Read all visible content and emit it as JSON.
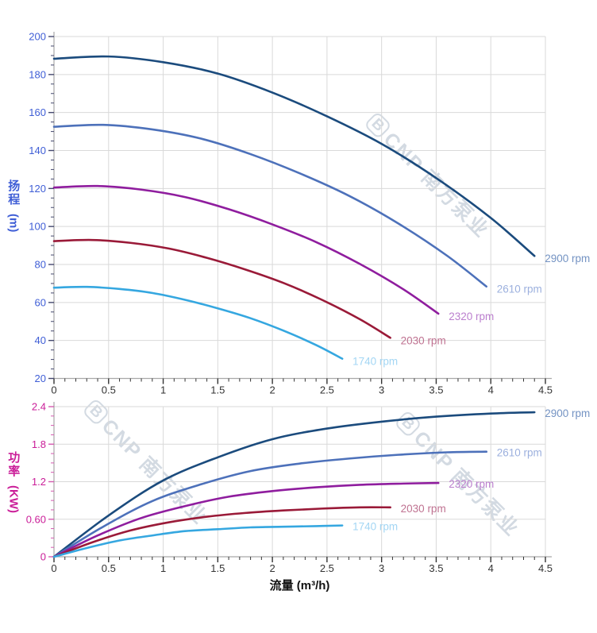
{
  "page": {
    "background": "#ffffff"
  },
  "watermark": {
    "logo_letter": "B",
    "text": "CNP 南方泵业"
  },
  "chart_data": [
    {
      "type": "line",
      "name": "head-curve-chart",
      "title": "",
      "ylabel": "扬程 (m)",
      "ylabel_main": "扬程",
      "ylabel_unit": "(m)",
      "xlabel": "流量 (m³/h)",
      "show_xlabel": false,
      "xlim": [
        0,
        4.5
      ],
      "ylim": [
        20,
        200
      ],
      "grid": true,
      "legend_position": "at-curve-ends-right",
      "x_tick_values": [
        0,
        0.5,
        1,
        1.5,
        2,
        2.5,
        3,
        3.5,
        4,
        4.5
      ],
      "x_tick_labels": [
        "0",
        "0.5",
        "1",
        "1.5",
        "2",
        "2.5",
        "3",
        "3.5",
        "4",
        "4.5"
      ],
      "x_minor_step": 0.1,
      "y_tick_values": [
        20,
        40,
        60,
        80,
        100,
        120,
        140,
        160,
        180,
        200
      ],
      "y_tick_labels": [
        "20",
        "40",
        "60",
        "80",
        "100",
        "120",
        "140",
        "160",
        "180",
        "200"
      ],
      "y_minor_step": 5,
      "axis_color": "#3f5ed6",
      "y_tick_color": "#44486e",
      "x_tick_color": "#333333",
      "grid_color": "#d9d9d9",
      "axis_line_color": "#a8a8a8",
      "series": [
        {
          "name": "2900 rpm",
          "color": "#1b4b7d",
          "label_color": "#7493c3",
          "points": [
            [
              0,
              188.3
            ],
            [
              0.5,
              189.5
            ],
            [
              1,
              186.5
            ],
            [
              1.5,
              180.5
            ],
            [
              2,
              170.5
            ],
            [
              2.5,
              158
            ],
            [
              3,
              143.5
            ],
            [
              3.5,
              125.5
            ],
            [
              4,
              104.5
            ],
            [
              4.4,
              84.5
            ]
          ]
        },
        {
          "name": "2610 rpm",
          "color": "#4d71ba",
          "label_color": "#9cb0de",
          "points": [
            [
              0,
              152.5
            ],
            [
              0.45,
              153.5
            ],
            [
              0.9,
              151.1
            ],
            [
              1.35,
              146.2
            ],
            [
              1.8,
              138.1
            ],
            [
              2.25,
              128
            ],
            [
              2.7,
              116.2
            ],
            [
              3.15,
              101.7
            ],
            [
              3.6,
              84.6
            ],
            [
              3.96,
              68.4
            ]
          ]
        },
        {
          "name": "2320 rpm",
          "color": "#8f1d9e",
          "label_color": "#bb7fce",
          "points": [
            [
              0,
              120.5
            ],
            [
              0.4,
              121.3
            ],
            [
              0.8,
              119.4
            ],
            [
              1.2,
              115.5
            ],
            [
              1.6,
              109.1
            ],
            [
              2,
              101.1
            ],
            [
              2.4,
              91.8
            ],
            [
              2.8,
              80.3
            ],
            [
              3.2,
              66.9
            ],
            [
              3.52,
              54.1
            ]
          ]
        },
        {
          "name": "2030 rpm",
          "color": "#9a1a38",
          "label_color": "#bf7291",
          "points": [
            [
              0,
              92.3
            ],
            [
              0.35,
              92.9
            ],
            [
              0.7,
              91.4
            ],
            [
              1.05,
              88.4
            ],
            [
              1.4,
              83.5
            ],
            [
              1.75,
              77.4
            ],
            [
              2.1,
              70.3
            ],
            [
              2.45,
              61.5
            ],
            [
              2.8,
              51.2
            ],
            [
              3.08,
              41.4
            ]
          ]
        },
        {
          "name": "1740 rpm",
          "color": "#35a7e0",
          "label_color": "#a3d6f4",
          "points": [
            [
              0,
              67.8
            ],
            [
              0.3,
              68.2
            ],
            [
              0.6,
              67.1
            ],
            [
              0.9,
              65
            ],
            [
              1.2,
              61.4
            ],
            [
              1.5,
              56.9
            ],
            [
              1.8,
              51.7
            ],
            [
              2.1,
              45.2
            ],
            [
              2.4,
              37.6
            ],
            [
              2.64,
              30.4
            ]
          ]
        }
      ]
    },
    {
      "type": "line",
      "name": "power-curve-chart",
      "title": "",
      "ylabel": "功率 (KW)",
      "ylabel_main": "功率",
      "ylabel_unit": "(KW)",
      "xlabel": "流量 (m³/h)",
      "show_xlabel": true,
      "xlim": [
        0,
        4.5
      ],
      "ylim": [
        0,
        2.4
      ],
      "grid": true,
      "legend_position": "at-curve-ends-right",
      "x_tick_values": [
        0,
        0.5,
        1,
        1.5,
        2,
        2.5,
        3,
        3.5,
        4,
        4.5
      ],
      "x_tick_labels": [
        "0",
        "0.5",
        "1",
        "1.5",
        "2",
        "2.5",
        "3",
        "3.5",
        "4",
        "4.5"
      ],
      "x_minor_step": 0.1,
      "y_tick_values": [
        0,
        0.6,
        1.2,
        1.8,
        2.4
      ],
      "y_tick_labels": [
        "0",
        "0.60",
        "1.2",
        "1.8",
        "2.4"
      ],
      "y_minor_step": 0.15,
      "axis_color": "#ca1d98",
      "y_tick_color": "#d55ab0",
      "x_tick_color": "#333333",
      "grid_color": "#d9d9d9",
      "axis_line_color": "#a8a8a8",
      "series": [
        {
          "name": "2900 rpm",
          "color": "#1b4b7d",
          "label_color": "#7493c3",
          "points": [
            [
              0,
              0
            ],
            [
              0.5,
              0.66
            ],
            [
              1,
              1.22
            ],
            [
              1.5,
              1.59
            ],
            [
              2,
              1.88
            ],
            [
              2.5,
              2.05
            ],
            [
              3,
              2.16
            ],
            [
              3.5,
              2.24
            ],
            [
              4,
              2.29
            ],
            [
              4.4,
              2.31
            ]
          ]
        },
        {
          "name": "2610 rpm",
          "color": "#4d71ba",
          "label_color": "#9cb0de",
          "points": [
            [
              0,
              0
            ],
            [
              0.45,
              0.48
            ],
            [
              0.9,
              0.89
            ],
            [
              1.35,
              1.16
            ],
            [
              1.8,
              1.37
            ],
            [
              2.25,
              1.49
            ],
            [
              2.7,
              1.57
            ],
            [
              3.15,
              1.63
            ],
            [
              3.6,
              1.67
            ],
            [
              3.96,
              1.68
            ]
          ]
        },
        {
          "name": "2320 rpm",
          "color": "#8f1d9e",
          "label_color": "#bb7fce",
          "points": [
            [
              0,
              0
            ],
            [
              0.4,
              0.34
            ],
            [
              0.8,
              0.62
            ],
            [
              1.2,
              0.81
            ],
            [
              1.6,
              0.96
            ],
            [
              2,
              1.05
            ],
            [
              2.4,
              1.11
            ],
            [
              2.8,
              1.15
            ],
            [
              3.2,
              1.17
            ],
            [
              3.52,
              1.18
            ]
          ]
        },
        {
          "name": "2030 rpm",
          "color": "#9a1a38",
          "label_color": "#bf7291",
          "points": [
            [
              0,
              0
            ],
            [
              0.35,
              0.23
            ],
            [
              0.7,
              0.42
            ],
            [
              1.05,
              0.55
            ],
            [
              1.4,
              0.64
            ],
            [
              1.75,
              0.7
            ],
            [
              2.1,
              0.74
            ],
            [
              2.45,
              0.77
            ],
            [
              2.8,
              0.79
            ],
            [
              3.08,
              0.79
            ]
          ]
        },
        {
          "name": "1740 rpm",
          "color": "#35a7e0",
          "label_color": "#a3d6f4",
          "points": [
            [
              0,
              0
            ],
            [
              0.3,
              0.14
            ],
            [
              0.6,
              0.26
            ],
            [
              0.9,
              0.34
            ],
            [
              1.2,
              0.41
            ],
            [
              1.5,
              0.44
            ],
            [
              1.8,
              0.47
            ],
            [
              2.1,
              0.48
            ],
            [
              2.4,
              0.49
            ],
            [
              2.64,
              0.5
            ]
          ]
        }
      ]
    }
  ]
}
